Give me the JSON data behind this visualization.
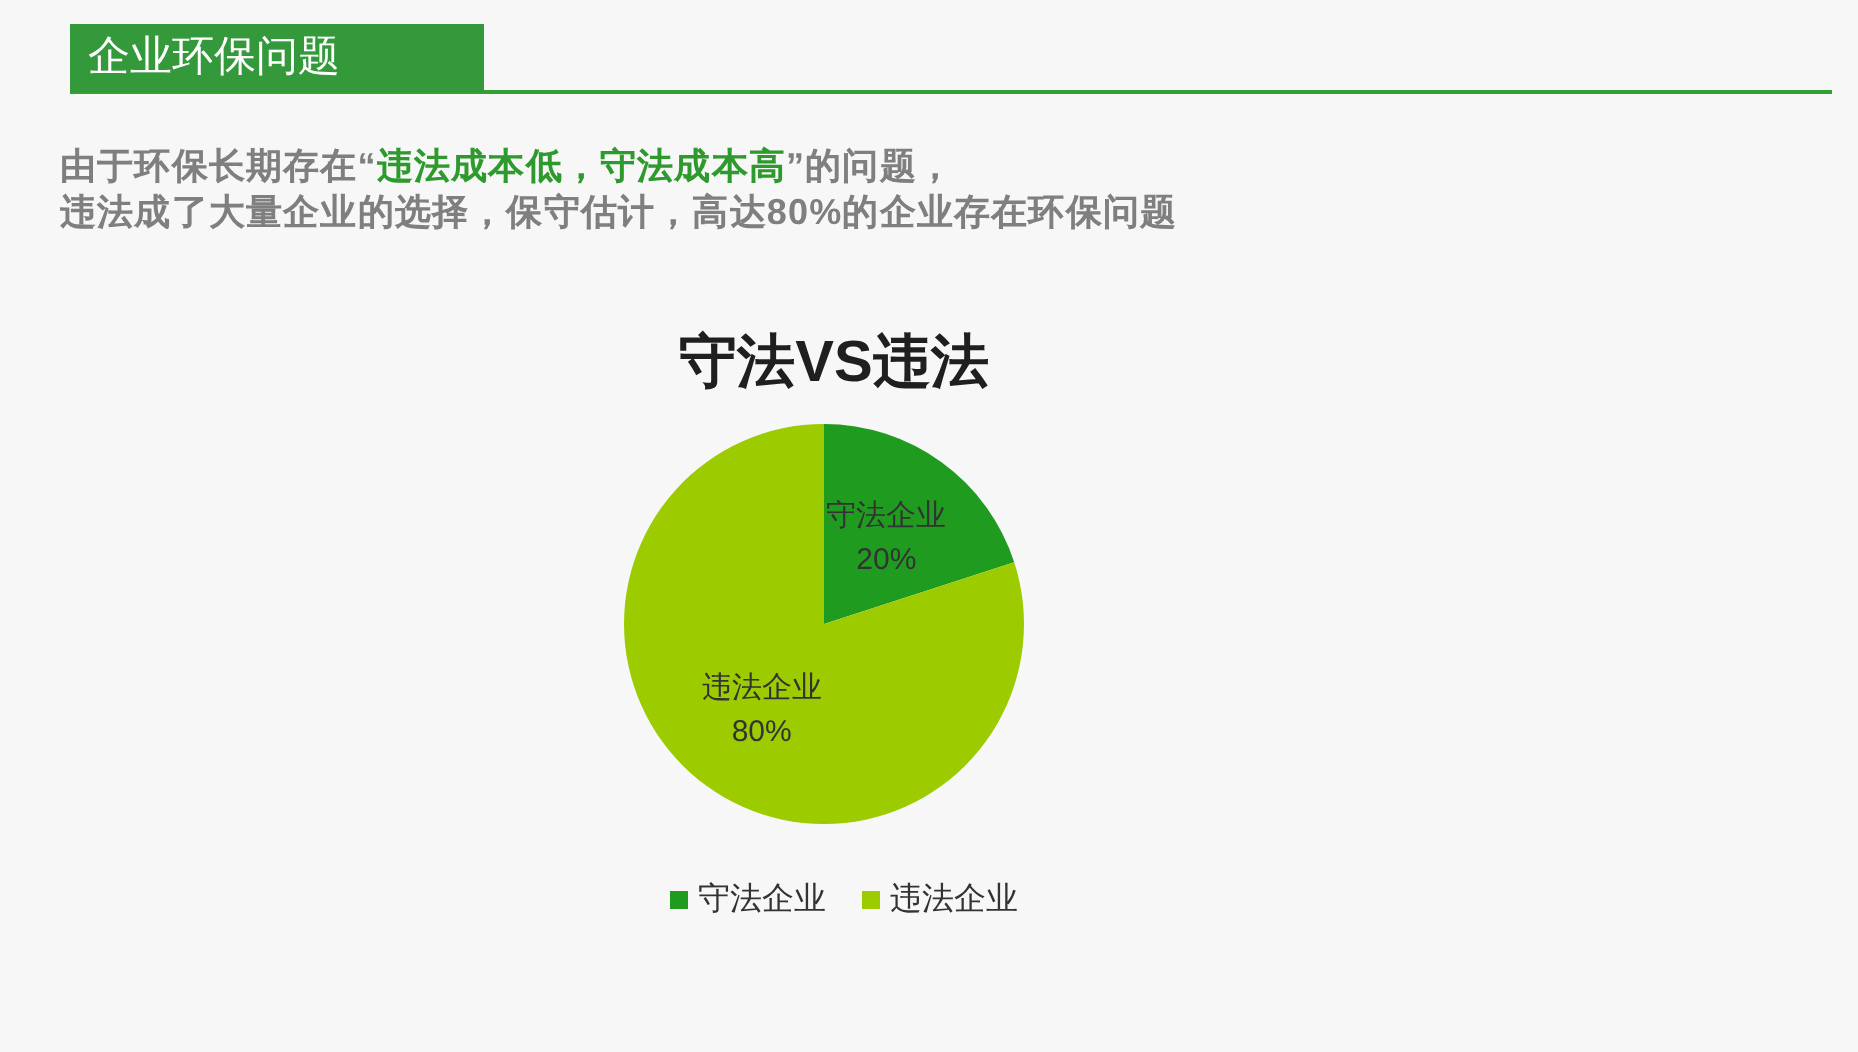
{
  "chart_data": {
    "type": "pie",
    "title": "守法VS违法",
    "subtitle": "由于环保长期存在“违法成本低，守法成本高”的问题，违法成了大量企业的选择，保守估计，高达80%的企业存在环保问题",
    "annotations": [
      "企业环保问题"
    ],
    "categories": [
      "守法企业",
      "违法企业"
    ],
    "values": [
      20,
      80
    ],
    "colors": [
      "#1f9b1f",
      "#9ccc00"
    ],
    "value_labels": [
      "20%",
      "80%"
    ],
    "legend": "bottom"
  }
}
